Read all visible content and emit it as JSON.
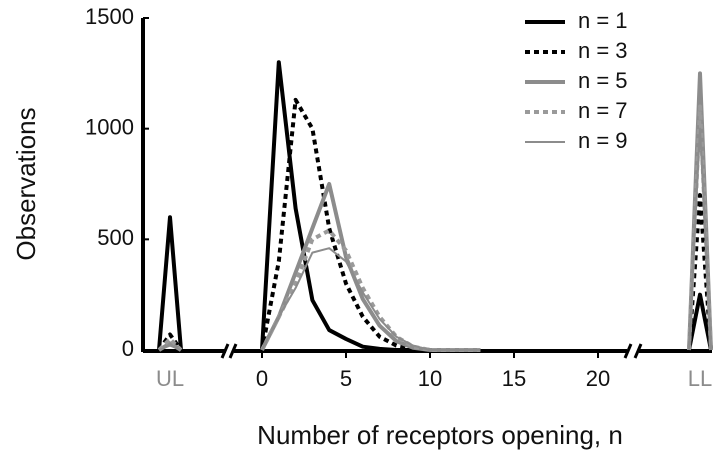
{
  "chart_data": {
    "type": "line",
    "y_label": "Observations",
    "x_label": "Number of receptors opening, n",
    "x": [
      0,
      1,
      2,
      3,
      4,
      5,
      6,
      7,
      8,
      9,
      10,
      11,
      12,
      13
    ],
    "xlim": [
      -2,
      22
    ],
    "xticks": [
      0,
      5,
      10,
      15,
      20
    ],
    "ylim": [
      0,
      1500
    ],
    "yticks": [
      0,
      500,
      1000,
      1500
    ],
    "ul_label": "UL",
    "ll_label": "LL",
    "legend": "top-right",
    "series": [
      {
        "name": "n = 1",
        "color": "#000000",
        "width": 4,
        "style": "solid",
        "ul": 600,
        "ll": 250,
        "values": [
          0,
          1300,
          640,
          225,
          90,
          50,
          15,
          5,
          0,
          0,
          0,
          0,
          0,
          0
        ]
      },
      {
        "name": "n = 3",
        "color": "#000000",
        "width": 4,
        "style": "dotted",
        "ul": 70,
        "ll": 700,
        "values": [
          0,
          400,
          1130,
          1000,
          550,
          300,
          150,
          60,
          20,
          5,
          0,
          0,
          0,
          0
        ]
      },
      {
        "name": "n = 5",
        "color": "#8c8c8c",
        "width": 4,
        "style": "solid",
        "ul": 30,
        "ll": 1250,
        "values": [
          0,
          150,
          350,
          550,
          750,
          420,
          230,
          110,
          40,
          10,
          0,
          0,
          0,
          0
        ]
      },
      {
        "name": "n = 7",
        "color": "#9a9a9a",
        "width": 4,
        "style": "dotted",
        "ul": 50,
        "ll": 1100,
        "values": [
          0,
          150,
          300,
          500,
          540,
          450,
          280,
          150,
          60,
          15,
          0,
          0,
          0,
          0
        ]
      },
      {
        "name": "n = 9",
        "color": "#8c8c8c",
        "width": 2,
        "style": "solid",
        "ul": 20,
        "ll": 1000,
        "values": [
          0,
          150,
          280,
          440,
          460,
          400,
          260,
          140,
          60,
          20,
          0,
          0,
          0,
          0
        ]
      }
    ]
  }
}
